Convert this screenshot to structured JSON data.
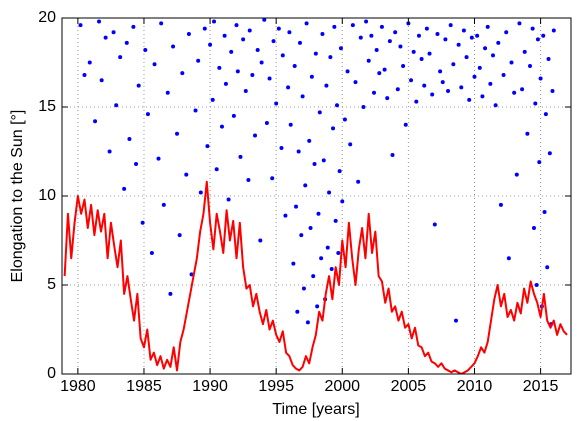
{
  "chart_data": {
    "type": "scatter",
    "x_label": "Time [years]",
    "y_label": "Elongation to the Sun [°]",
    "xlim": [
      1978.8,
      2017.3
    ],
    "xticks": [
      1980,
      1985,
      1990,
      1995,
      2000,
      2005,
      2010,
      2015
    ],
    "ylim": [
      0,
      20
    ],
    "yticks": [
      0,
      5,
      10,
      15,
      20
    ],
    "grid": true,
    "series": [
      {
        "type": "scatter",
        "color": "#0000ff",
        "x": [
          1980.2,
          1980.5,
          1980.9,
          1981.3,
          1981.6,
          1981.8,
          1982.1,
          1982.4,
          1982.7,
          1982.9,
          1983.2,
          1983.5,
          1983.7,
          1983.9,
          1984.2,
          1984.4,
          1984.6,
          1984.9,
          1985.1,
          1985.3,
          1985.6,
          1985.8,
          1986.1,
          1986.3,
          1986.5,
          1986.8,
          1987.0,
          1987.2,
          1987.5,
          1987.7,
          1987.9,
          1988.2,
          1988.4,
          1988.6,
          1988.9,
          1989.1,
          1989.3,
          1989.6,
          1989.8,
          1990.0,
          1990.2,
          1990.3,
          1990.5,
          1990.7,
          1990.9,
          1991.1,
          1991.2,
          1991.4,
          1991.6,
          1991.8,
          1992.0,
          1992.1,
          1992.3,
          1992.5,
          1992.7,
          1992.9,
          1993.0,
          1993.2,
          1993.4,
          1993.6,
          1993.8,
          1993.9,
          1994.1,
          1994.3,
          1994.5,
          1994.7,
          1994.8,
          1995.0,
          1995.2,
          1995.4,
          1995.5,
          1995.7,
          1995.9,
          1996.0,
          1996.1,
          1996.3,
          1996.4,
          1996.5,
          1996.6,
          1996.7,
          1996.8,
          1996.9,
          1997.0,
          1997.1,
          1997.2,
          1997.3,
          1997.4,
          1997.5,
          1997.6,
          1997.7,
          1997.8,
          1997.9,
          1998.0,
          1998.1,
          1998.2,
          1998.3,
          1998.4,
          1998.5,
          1998.6,
          1998.7,
          1998.8,
          1998.9,
          1999.0,
          1999.1,
          1999.2,
          1999.3,
          1999.4,
          1999.5,
          1999.6,
          1999.7,
          1999.8,
          1999.9,
          2000.0,
          2000.2,
          2000.4,
          2000.6,
          2000.8,
          2001.0,
          2001.2,
          2001.4,
          2001.6,
          2001.8,
          2002.0,
          2002.2,
          2002.4,
          2002.6,
          2002.8,
          2003.0,
          2003.2,
          2003.4,
          2003.6,
          2003.8,
          2004.0,
          2004.2,
          2004.4,
          2004.6,
          2004.8,
          2005.0,
          2005.2,
          2005.4,
          2005.6,
          2005.8,
          2006.0,
          2006.2,
          2006.4,
          2006.6,
          2006.8,
          2007.0,
          2007.2,
          2007.4,
          2007.6,
          2007.8,
          2008.0,
          2008.2,
          2008.4,
          2008.6,
          2008.8,
          2009.0,
          2009.2,
          2009.4,
          2009.6,
          2009.8,
          2010.0,
          2010.2,
          2010.4,
          2010.6,
          2010.8,
          2011.0,
          2011.2,
          2011.4,
          2011.6,
          2011.8,
          2012.0,
          2012.2,
          2012.4,
          2012.6,
          2012.8,
          2013.0,
          2013.2,
          2013.4,
          2013.6,
          2013.8,
          2014.0,
          2014.2,
          2014.4,
          2014.5,
          2014.6,
          2014.7,
          2014.8,
          2014.9,
          2015.0,
          2015.1,
          2015.2,
          2015.3,
          2015.4,
          2015.5,
          2015.6,
          2015.7,
          2015.8,
          2015.9,
          2016.0
        ],
        "values": [
          19.6,
          16.8,
          17.5,
          14.2,
          19.8,
          16.5,
          18.9,
          12.5,
          19.2,
          15.1,
          17.8,
          10.4,
          18.6,
          13.2,
          19.5,
          11.8,
          16.2,
          8.5,
          18.2,
          14.6,
          6.8,
          17.4,
          12.1,
          19.7,
          9.5,
          15.8,
          4.5,
          18.4,
          13.5,
          7.8,
          16.9,
          11.2,
          19.1,
          5.6,
          14.8,
          17.6,
          10.2,
          19.4,
          12.8,
          18.5,
          15.4,
          19.8,
          11.5,
          17.2,
          13.9,
          19.0,
          16.3,
          9.8,
          18.1,
          14.5,
          19.6,
          17.0,
          12.2,
          18.8,
          15.9,
          10.9,
          19.3,
          16.8,
          13.4,
          18.2,
          7.5,
          17.5,
          19.9,
          14.1,
          16.6,
          11.0,
          18.7,
          15.2,
          19.4,
          12.7,
          17.9,
          8.9,
          16.1,
          19.2,
          14.0,
          6.2,
          17.3,
          9.4,
          3.5,
          12.5,
          18.6,
          7.8,
          15.6,
          4.8,
          10.6,
          19.7,
          2.9,
          13.1,
          8.2,
          16.7,
          5.5,
          11.8,
          18.0,
          3.8,
          9.0,
          14.7,
          6.5,
          19.1,
          12.0,
          4.2,
          16.2,
          7.1,
          10.2,
          17.8,
          5.9,
          13.8,
          19.5,
          8.6,
          15.1,
          6.8,
          11.4,
          18.3,
          9.7,
          14.3,
          17.0,
          12.9,
          19.6,
          16.4,
          10.8,
          18.9,
          15.0,
          19.8,
          17.6,
          19.0,
          15.8,
          18.2,
          16.9,
          19.5,
          17.1,
          15.5,
          18.7,
          12.3,
          19.2,
          16.0,
          18.4,
          17.3,
          14.0,
          19.7,
          16.5,
          18.1,
          15.3,
          19.0,
          17.7,
          16.2,
          19.4,
          18.0,
          15.7,
          8.4,
          19.1,
          17.0,
          16.4,
          18.8,
          15.9,
          19.6,
          17.4,
          3.0,
          18.5,
          16.1,
          19.3,
          17.8,
          15.4,
          18.9,
          16.7,
          19.0,
          17.2,
          15.6,
          18.3,
          19.5,
          16.3,
          17.9,
          15.1,
          18.6,
          9.5,
          16.8,
          19.2,
          6.5,
          17.5,
          15.8,
          11.2,
          19.7,
          16.0,
          18.1,
          13.5,
          17.3,
          19.4,
          8.2,
          15.2,
          5.0,
          18.8,
          11.9,
          16.6,
          3.8,
          19.0,
          9.1,
          14.6,
          6.0,
          17.7,
          12.4,
          2.8,
          15.9,
          19.3
        ]
      },
      {
        "type": "line",
        "color": "#ff0000",
        "x": [
          1979.0,
          1979.25,
          1979.5,
          1979.75,
          1980.0,
          1980.25,
          1980.5,
          1980.75,
          1981.0,
          1981.25,
          1981.5,
          1981.75,
          1982.0,
          1982.25,
          1982.5,
          1982.75,
          1983.0,
          1983.25,
          1983.5,
          1983.75,
          1984.0,
          1984.25,
          1984.5,
          1984.75,
          1985.0,
          1985.25,
          1985.5,
          1985.75,
          1986.0,
          1986.25,
          1986.5,
          1986.75,
          1987.0,
          1987.25,
          1987.5,
          1987.75,
          1988.0,
          1988.25,
          1988.5,
          1988.75,
          1989.0,
          1989.25,
          1989.5,
          1989.75,
          1990.0,
          1990.25,
          1990.5,
          1990.75,
          1991.0,
          1991.25,
          1991.5,
          1991.75,
          1992.0,
          1992.25,
          1992.5,
          1992.75,
          1993.0,
          1993.25,
          1993.5,
          1993.75,
          1994.0,
          1994.25,
          1994.5,
          1994.75,
          1995.0,
          1995.25,
          1995.5,
          1995.75,
          1996.0,
          1996.25,
          1996.5,
          1996.75,
          1997.0,
          1997.25,
          1997.5,
          1997.75,
          1998.0,
          1998.25,
          1998.5,
          1998.75,
          1999.0,
          1999.25,
          1999.5,
          1999.75,
          2000.0,
          2000.25,
          2000.5,
          2000.75,
          2001.0,
          2001.25,
          2001.5,
          2001.75,
          2002.0,
          2002.25,
          2002.5,
          2002.75,
          2003.0,
          2003.25,
          2003.5,
          2003.75,
          2004.0,
          2004.25,
          2004.5,
          2004.75,
          2005.0,
          2005.25,
          2005.5,
          2005.75,
          2006.0,
          2006.25,
          2006.5,
          2006.75,
          2007.0,
          2007.25,
          2007.5,
          2007.75,
          2008.0,
          2008.25,
          2008.5,
          2008.75,
          2009.0,
          2009.25,
          2009.5,
          2009.75,
          2010.0,
          2010.25,
          2010.5,
          2010.75,
          2011.0,
          2011.25,
          2011.5,
          2011.75,
          2012.0,
          2012.25,
          2012.5,
          2012.75,
          2013.0,
          2013.25,
          2013.5,
          2013.75,
          2014.0,
          2014.25,
          2014.5,
          2014.75,
          2015.0,
          2015.25,
          2015.5,
          2015.75,
          2016.0,
          2016.25,
          2016.5,
          2016.75,
          2017.0
        ],
        "values": [
          5.5,
          9.0,
          6.5,
          8.5,
          10.0,
          9.0,
          9.8,
          8.2,
          9.5,
          7.8,
          9.2,
          8.0,
          9.0,
          6.5,
          8.5,
          7.2,
          6.0,
          7.5,
          4.5,
          5.5,
          4.2,
          3.0,
          4.5,
          2.0,
          1.5,
          2.5,
          0.8,
          1.2,
          0.5,
          1.0,
          0.3,
          0.8,
          0.4,
          1.5,
          0.2,
          1.8,
          2.5,
          3.5,
          4.5,
          5.5,
          6.5,
          8.0,
          9.0,
          10.8,
          8.5,
          7.0,
          9.0,
          8.0,
          6.8,
          9.2,
          7.5,
          8.6,
          6.5,
          8.5,
          6.0,
          4.8,
          5.0,
          3.8,
          4.5,
          3.5,
          2.8,
          3.6,
          2.5,
          3.0,
          2.2,
          1.8,
          2.4,
          1.2,
          1.0,
          0.5,
          0.3,
          0.2,
          0.4,
          1.0,
          0.6,
          1.5,
          2.2,
          3.5,
          3.0,
          4.5,
          5.5,
          4.2,
          6.0,
          5.0,
          7.5,
          6.0,
          8.5,
          6.5,
          5.0,
          7.0,
          8.2,
          6.5,
          9.0,
          6.8,
          8.0,
          5.5,
          5.2,
          4.0,
          4.8,
          3.5,
          3.8,
          3.0,
          3.5,
          2.6,
          2.8,
          2.0,
          2.6,
          1.6,
          1.5,
          1.0,
          1.2,
          0.7,
          0.6,
          0.4,
          0.6,
          0.3,
          0.2,
          0.1,
          0.2,
          0.1,
          0.0,
          0.1,
          0.2,
          0.4,
          0.6,
          1.0,
          1.5,
          1.2,
          1.8,
          3.0,
          4.2,
          5.0,
          3.8,
          4.5,
          3.2,
          3.6,
          3.0,
          4.0,
          3.4,
          4.8,
          4.0,
          5.2,
          4.5,
          4.0,
          3.2,
          4.5,
          3.0,
          2.6,
          3.0,
          2.2,
          2.8,
          2.4,
          2.2
        ]
      }
    ]
  }
}
